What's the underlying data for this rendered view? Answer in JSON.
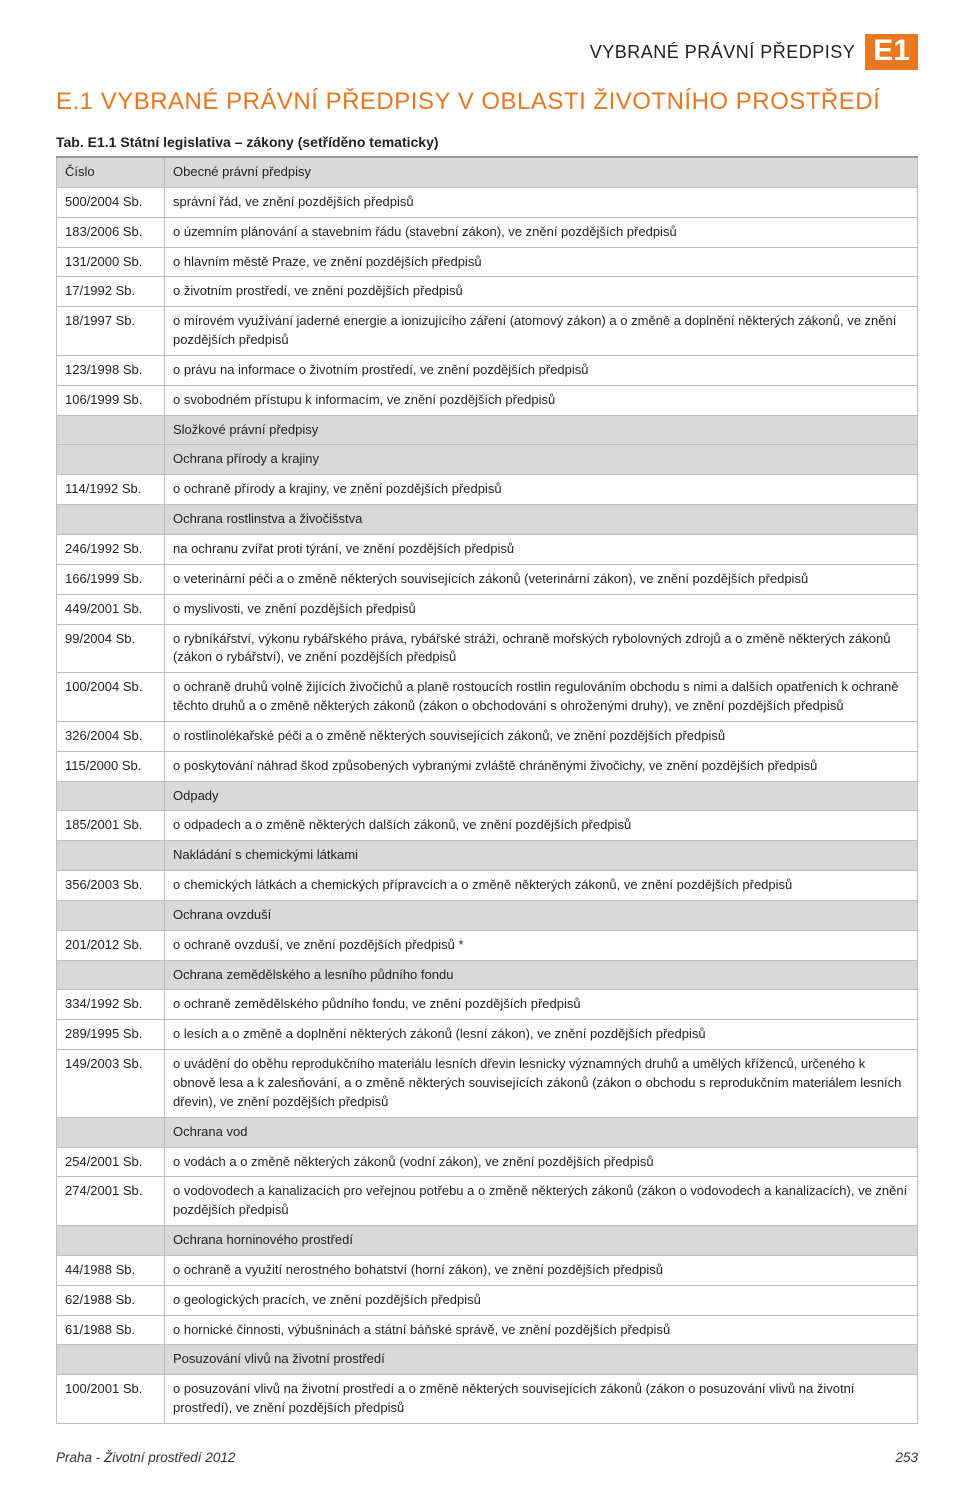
{
  "colors": {
    "accent": "#e87722",
    "headerBg": "#d9d9d9",
    "border": "#bfbfbf",
    "text": "#231f20"
  },
  "topHeader": {
    "label": "VYBRANÉ PRÁVNÍ PŘEDPISY",
    "badge": "E1"
  },
  "mainTitle": "E.1 VYBRANÉ PRÁVNÍ PŘEDPISY V OBLASTI ŽIVOTNÍHO PROSTŘEDÍ",
  "tableCaption": "Tab. E1.1 Státní legislativa – zákony (setříděno tematicky)",
  "table": {
    "codeHeader": "Číslo",
    "rows": [
      {
        "kind": "section",
        "text": "Obecné právní předpisy"
      },
      {
        "kind": "data",
        "code": "500/2004 Sb.",
        "text": "správní řád, ve znění pozdějších předpisů"
      },
      {
        "kind": "data",
        "code": "183/2006 Sb.",
        "text": "o územním plánování a stavebním řádu (stavební zákon), ve znění pozdějších předpisů"
      },
      {
        "kind": "data",
        "code": "131/2000 Sb.",
        "text": "o hlavním městě Praze, ve znění pozdějších předpisů"
      },
      {
        "kind": "data",
        "code": "17/1992 Sb.",
        "text": "o životním prostředí, ve znění pozdějších předpisů"
      },
      {
        "kind": "data",
        "code": "18/1997 Sb.",
        "text": "o mírovém využívání jaderné energie a ionizujícího záření (atomový zákon) a o změně a doplnění některých zákonů, ve znění pozdějších předpisů"
      },
      {
        "kind": "data",
        "code": "123/1998 Sb.",
        "text": "o právu na informace o životním prostředí, ve znění pozdějších předpisů"
      },
      {
        "kind": "data",
        "code": "106/1999 Sb.",
        "text": "o svobodném přístupu k informacím, ve znění pozdějších předpisů"
      },
      {
        "kind": "section",
        "text": "Složkové právní předpisy"
      },
      {
        "kind": "section",
        "text": "Ochrana přírody a krajiny"
      },
      {
        "kind": "data",
        "code": "114/1992 Sb.",
        "text": "o ochraně přírody a krajiny, ve znění pozdějších předpisů"
      },
      {
        "kind": "section",
        "text": "Ochrana rostlinstva a živočišstva"
      },
      {
        "kind": "data",
        "code": "246/1992 Sb.",
        "text": "na ochranu zvířat proti týrání, ve znění pozdějších předpisů"
      },
      {
        "kind": "data",
        "code": "166/1999 Sb.",
        "text": "o veterinární péči a o změně některých souvisejících zákonů (veterinární zákon), ve znění pozdějších předpisů"
      },
      {
        "kind": "data",
        "code": "449/2001 Sb.",
        "text": "o myslivosti, ve znění pozdějších předpisů"
      },
      {
        "kind": "data",
        "code": "99/2004 Sb.",
        "text": "o rybníkářství, výkonu rybářského práva, rybářské stráži, ochraně mořských rybolovných zdrojů a o změně některých zákonů (zákon o rybářství), ve znění pozdějších předpisů"
      },
      {
        "kind": "data",
        "code": "100/2004 Sb.",
        "text": "o ochraně druhů volně žijících živočichů a planě rostoucích rostlin regulováním obchodu s nimi a dalších opatřeních k ochraně těchto druhů a o změně některých zákonů (zákon o obchodování s ohroženými druhy), ve znění pozdějších předpisů"
      },
      {
        "kind": "data",
        "code": "326/2004 Sb.",
        "text": "o rostlinolékařské péči a o změně některých souvisejících zákonů, ve znění pozdějších předpisů"
      },
      {
        "kind": "data",
        "code": "115/2000 Sb.",
        "text": "o poskytování náhrad škod způsobených vybranými zvláště chráněnými živočichy, ve znění pozdějších předpisů"
      },
      {
        "kind": "section",
        "text": "Odpady"
      },
      {
        "kind": "data",
        "code": "185/2001 Sb.",
        "text": "o odpadech a o změně některých dalších zákonů, ve znění pozdějších předpisů"
      },
      {
        "kind": "section",
        "text": "Nakládání s chemickými látkami"
      },
      {
        "kind": "data",
        "code": "356/2003 Sb.",
        "text": "o chemických látkách a chemických přípravcích a o změně některých zákonů, ve znění pozdějších předpisů"
      },
      {
        "kind": "section",
        "text": "Ochrana ovzduší"
      },
      {
        "kind": "data",
        "code": "201/2012 Sb.",
        "text": "o ochraně ovzduší, ve znění pozdějších předpisů *"
      },
      {
        "kind": "section",
        "text": "Ochrana zemědělského a lesního půdního fondu"
      },
      {
        "kind": "data",
        "code": "334/1992 Sb.",
        "text": "o ochraně zemědělského půdního fondu, ve znění pozdějších předpisů"
      },
      {
        "kind": "data",
        "code": "289/1995 Sb.",
        "text": "o lesích a o změně a doplnění některých zákonů (lesní zákon), ve znění pozdějších předpisů"
      },
      {
        "kind": "data",
        "code": "149/2003 Sb.",
        "text": "o uvádění do oběhu reprodukčního materiálu lesních dřevin lesnicky významných druhů a umělých kříženců, určeného k obnově lesa a k zalesňování, a o změně některých souvisejících zákonů (zákon o obchodu s reprodukčním materiálem lesních dřevin), ve znění pozdějších předpisů"
      },
      {
        "kind": "section",
        "text": "Ochrana vod"
      },
      {
        "kind": "data",
        "code": "254/2001 Sb.",
        "text": "o vodách a o změně některých zákonů (vodní zákon), ve znění pozdějších předpisů"
      },
      {
        "kind": "data",
        "code": "274/2001 Sb.",
        "text": "o vodovodech a kanalizacích pro veřejnou potřebu a o změně některých zákonů (zákon o vodovodech a kanalizacích), ve znění pozdějších předpisů"
      },
      {
        "kind": "section",
        "text": "Ochrana horninového prostředí"
      },
      {
        "kind": "data",
        "code": "44/1988 Sb.",
        "text": "o ochraně a využití nerostného bohatství (horní zákon), ve znění pozdějších předpisů"
      },
      {
        "kind": "data",
        "code": "62/1988 Sb.",
        "text": "o geologických pracích, ve znění pozdějších předpisů"
      },
      {
        "kind": "data",
        "code": "61/1988 Sb.",
        "text": "o hornické činnosti, výbušninách a státní báňské správě, ve znění pozdějších předpisů"
      },
      {
        "kind": "section",
        "text": "Posuzování vlivů na životní prostředí"
      },
      {
        "kind": "data",
        "code": "100/2001 Sb.",
        "text": "o posuzování vlivů na životní prostředí a o změně některých souvisejících zákonů (zákon o posuzování vlivů na životní prostředí), ve znění pozdějších předpisů"
      }
    ]
  },
  "footer": {
    "left": "Praha - Životní prostředí 2012",
    "pageNum": "253"
  }
}
